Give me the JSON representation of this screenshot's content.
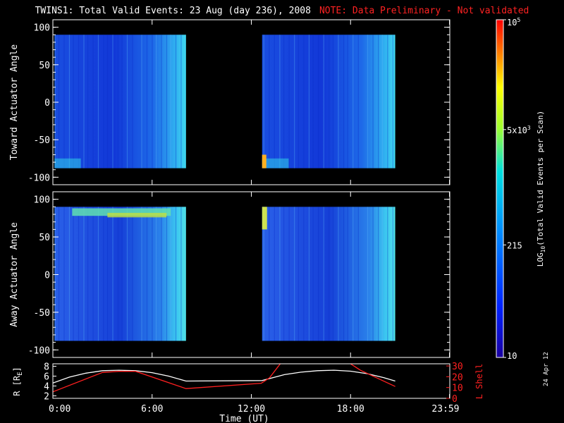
{
  "title": "TWINS1: Total Valid Events: 23 Aug (day 236), 2008",
  "note": "NOTE: Data Preliminary - Not validated",
  "date_stamp": "24 Apr 12",
  "chart_data": [
    {
      "type": "heatmap",
      "name": "toward",
      "ylabel": "Toward Actuator Angle",
      "ylim": [
        -110,
        110
      ],
      "yticks": [
        -100,
        -50,
        0,
        50,
        100
      ],
      "angle_range": [
        -88,
        90
      ],
      "xlim": [
        0,
        24
      ],
      "data_intervals": [
        [
          0.1,
          8.05
        ],
        [
          12.65,
          20.7
        ]
      ]
    },
    {
      "type": "heatmap",
      "name": "away",
      "ylabel": "Away Actuator Angle",
      "ylim": [
        -110,
        110
      ],
      "yticks": [
        -100,
        -50,
        0,
        50,
        100
      ],
      "angle_range": [
        -88,
        90
      ],
      "xlim": [
        0,
        24
      ],
      "data_intervals": [
        [
          0.1,
          8.05
        ],
        [
          12.65,
          20.7
        ]
      ]
    },
    {
      "type": "line",
      "name": "orbit",
      "xlabel": "Time (UT)",
      "xticks": [
        "0:00",
        "6:00",
        "12:00",
        "18:00",
        "23:59"
      ],
      "xtick_values": [
        0,
        6,
        12,
        18,
        23.98
      ],
      "left_axis": {
        "label": "R [R",
        "label_sub": "E",
        "label_end": "]",
        "ticks": [
          2,
          4,
          6,
          8
        ],
        "ylim": [
          1.5,
          8.5
        ]
      },
      "right_axis": {
        "label": "L Shell",
        "ticks": [
          0,
          10,
          20,
          30
        ],
        "ylim": [
          0,
          32
        ],
        "color": "#ff2020"
      },
      "series": [
        {
          "axis": "left",
          "color": "#ffffff",
          "x": [
            0,
            1,
            2,
            3,
            4,
            5,
            6,
            7,
            8.05,
            12.65,
            14,
            15,
            16,
            17,
            18,
            19,
            20,
            20.7
          ],
          "y": [
            4.6,
            5.8,
            6.6,
            7.1,
            7.2,
            7.1,
            6.7,
            6.0,
            5.0,
            5.1,
            6.3,
            6.8,
            7.1,
            7.2,
            7.0,
            6.5,
            5.7,
            5.0
          ]
        },
        {
          "axis": "right",
          "color": "#ff2020",
          "x": [
            0,
            3,
            4,
            5,
            8.05,
            12.6,
            13.1,
            13.8,
            null,
            17.9,
            18.6,
            20.7
          ],
          "y": [
            6,
            24,
            25,
            25,
            9,
            14,
            19,
            33,
            null,
            33,
            26,
            11
          ]
        }
      ]
    }
  ],
  "colorbar": {
    "label": "LOG",
    "label_sub": "10",
    "label_rest": "(Total Valid  Events per Scan)",
    "ticks": [
      {
        "label": "10",
        "value": 10
      },
      {
        "label": "215",
        "value": 215
      },
      {
        "label": "5x10",
        "sup": "3",
        "value": 5000
      },
      {
        "label": "10",
        "sup": "5",
        "value": 100000
      }
    ],
    "min": 10,
    "max": 100000
  }
}
